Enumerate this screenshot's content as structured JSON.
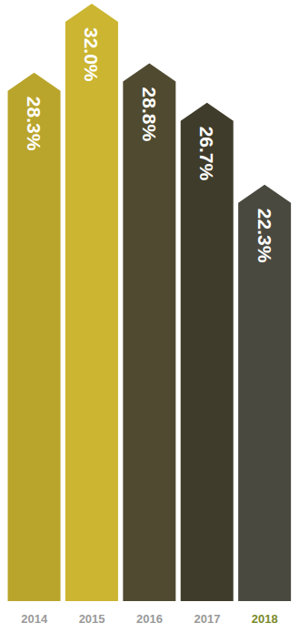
{
  "chart_data": {
    "type": "bar",
    "categories": [
      "2014",
      "2015",
      "2016",
      "2017",
      "2018"
    ],
    "values": [
      28.3,
      32.0,
      28.8,
      26.7,
      22.3
    ],
    "value_labels": [
      "28.3%",
      "32.0%",
      "28.8%",
      "26.7%",
      "22.3%"
    ],
    "colors": [
      "#b9a52c",
      "#cbb531",
      "#4f4a30",
      "#3f3c2b",
      "#4a4940"
    ],
    "ylim": [
      0,
      32.0
    ],
    "data_labels": true,
    "tick_labels": "x",
    "grid": false
  }
}
